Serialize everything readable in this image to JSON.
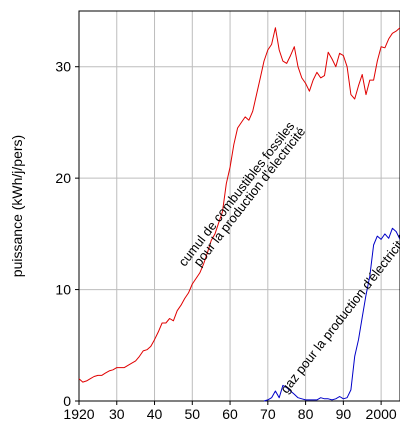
{
  "chart_data": {
    "type": "line",
    "ylabel": "puissance (kWh/j/pers)",
    "xlabel": "",
    "title": "",
    "xlim": [
      1920,
      2005
    ],
    "ylim": [
      0,
      35
    ],
    "x_ticks": [
      {
        "value": 1920,
        "label": "1920"
      },
      {
        "value": 1930,
        "label": "30"
      },
      {
        "value": 1940,
        "label": "40"
      },
      {
        "value": 1950,
        "label": "50"
      },
      {
        "value": 1960,
        "label": "60"
      },
      {
        "value": 1970,
        "label": "70"
      },
      {
        "value": 1980,
        "label": "80"
      },
      {
        "value": 1990,
        "label": "90"
      },
      {
        "value": 2000,
        "label": "2000"
      }
    ],
    "y_ticks": [
      {
        "value": 0,
        "label": "0"
      },
      {
        "value": 10,
        "label": "10"
      },
      {
        "value": 20,
        "label": "20"
      },
      {
        "value": 30,
        "label": "30"
      }
    ],
    "grid": true,
    "series": [
      {
        "name": "cumul de combustibles fossiles pour la production d'électricité",
        "color": "#e00000",
        "x": [
          1920,
          1921,
          1922,
          1923,
          1924,
          1925,
          1926,
          1927,
          1928,
          1929,
          1930,
          1931,
          1932,
          1933,
          1934,
          1935,
          1936,
          1937,
          1938,
          1939,
          1940,
          1941,
          1942,
          1943,
          1944,
          1945,
          1946,
          1947,
          1948,
          1949,
          1950,
          1951,
          1952,
          1953,
          1954,
          1955,
          1956,
          1957,
          1958,
          1959,
          1960,
          1961,
          1962,
          1963,
          1964,
          1965,
          1966,
          1967,
          1968,
          1969,
          1970,
          1971,
          1972,
          1973,
          1974,
          1975,
          1976,
          1977,
          1978,
          1979,
          1980,
          1981,
          1982,
          1983,
          1984,
          1985,
          1986,
          1987,
          1988,
          1989,
          1990,
          1991,
          1992,
          1993,
          1994,
          1995,
          1996,
          1997,
          1998,
          1999,
          2000,
          2001,
          2002,
          2003,
          2004,
          2005
        ],
        "values": [
          2.0,
          1.7,
          1.8,
          2.0,
          2.2,
          2.3,
          2.3,
          2.5,
          2.7,
          2.8,
          3.0,
          3.0,
          3.0,
          3.2,
          3.4,
          3.6,
          4.0,
          4.5,
          4.6,
          4.9,
          5.5,
          6.2,
          7.0,
          7.0,
          7.4,
          7.2,
          8.1,
          8.6,
          9.2,
          9.7,
          10.5,
          11.0,
          11.5,
          12.3,
          13.3,
          14.4,
          15.0,
          16.0,
          17.0,
          19.5,
          21.0,
          23.0,
          24.5,
          25.0,
          25.5,
          25.2,
          26.0,
          27.5,
          29.0,
          30.5,
          31.5,
          32.0,
          33.5,
          31.5,
          30.5,
          30.3,
          31.0,
          31.8,
          30.0,
          29.0,
          28.5,
          27.8,
          28.8,
          29.5,
          29.0,
          29.2,
          31.3,
          30.7,
          30.0,
          31.2,
          31.0,
          30.0,
          27.5,
          27.1,
          28.3,
          29.3,
          27.5,
          28.8,
          28.8,
          30.5,
          31.8,
          31.7,
          32.5,
          33.0,
          33.2,
          33.5
        ]
      },
      {
        "name": "gaz pour la production d'électricité",
        "color": "#0000c8",
        "x": [
          1969,
          1970,
          1971,
          1972,
          1973,
          1974,
          1975,
          1976,
          1977,
          1978,
          1979,
          1980,
          1981,
          1982,
          1983,
          1984,
          1985,
          1986,
          1987,
          1988,
          1989,
          1990,
          1991,
          1992,
          1993,
          1994,
          1995,
          1996,
          1997,
          1998,
          1999,
          2000,
          2001,
          2002,
          2003,
          2004,
          2005
        ],
        "values": [
          0.0,
          0.1,
          0.3,
          0.9,
          0.3,
          1.4,
          1.2,
          0.9,
          0.6,
          0.3,
          0.2,
          0.1,
          0.1,
          0.1,
          0.1,
          0.3,
          0.2,
          0.2,
          0.1,
          0.2,
          0.4,
          0.2,
          0.3,
          1.0,
          4.0,
          5.5,
          7.5,
          9.5,
          11.2,
          14.0,
          14.8,
          14.5,
          15.0,
          14.6,
          15.5,
          15.2,
          14.5
        ]
      }
    ],
    "annotations": [
      {
        "text": "cumul de combustibles fossiles",
        "x": 1948,
        "y": 12
      },
      {
        "text": "pour la production d'électricité",
        "x": 1952,
        "y": 12
      },
      {
        "text": "gaz pour la production d'électricité",
        "x": 1975,
        "y": 0.6
      }
    ]
  }
}
